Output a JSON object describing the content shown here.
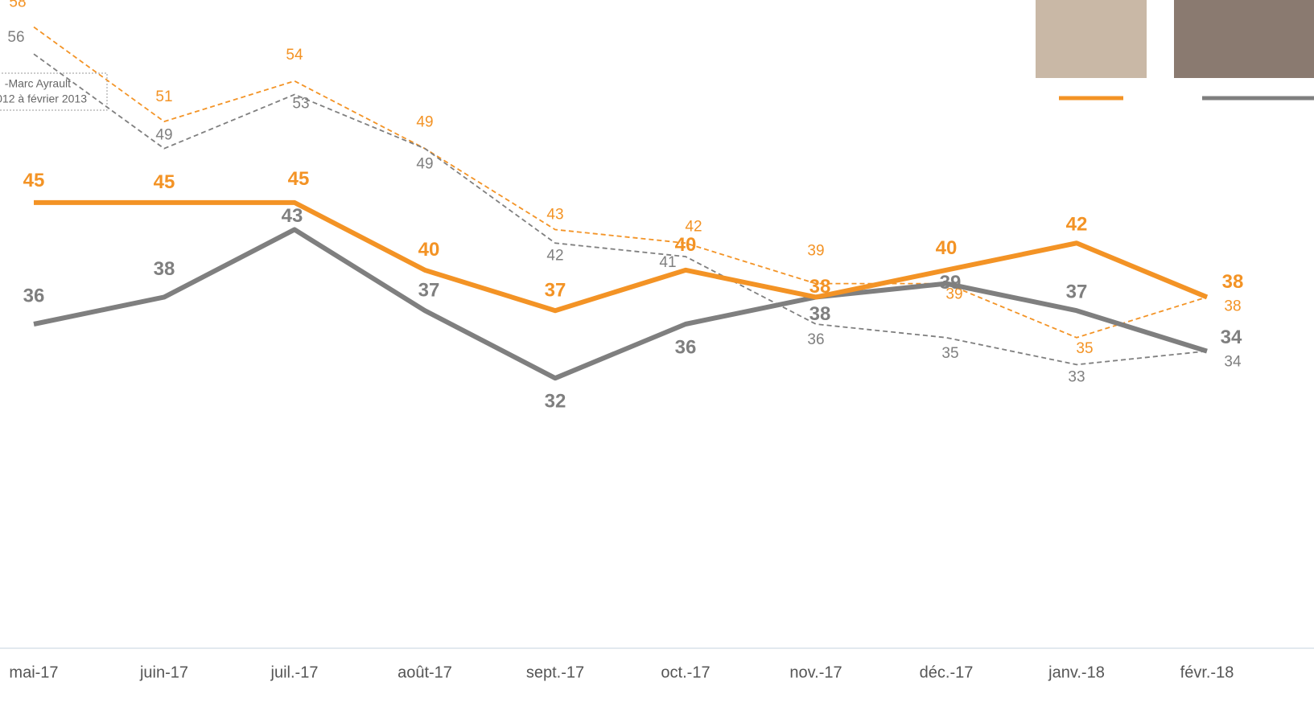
{
  "chart_data": {
    "type": "line",
    "categories": [
      "mai-17",
      "juin-17",
      "juil.-17",
      "août-17",
      "sept.-17",
      "oct.-17",
      "nov.-17",
      "déc.-17",
      "janv.-18",
      "févr.-18"
    ],
    "series": [
      {
        "color": "#f39325",
        "style": "solid",
        "values": [
          45,
          45,
          45,
          40,
          37,
          40,
          38,
          40,
          42,
          38
        ]
      },
      {
        "color": "#7f7f7f",
        "style": "solid",
        "values": [
          36,
          38,
          43,
          37,
          32,
          36,
          38,
          39,
          37,
          34
        ]
      },
      {
        "color": "#f39325",
        "style": "dashed",
        "values": [
          58,
          51,
          54,
          49,
          43,
          42,
          39,
          39,
          35,
          38
        ]
      },
      {
        "color": "#7f7f7f",
        "style": "dashed",
        "values": [
          56,
          49,
          53,
          49,
          42,
          41,
          36,
          35,
          33,
          34
        ]
      }
    ],
    "annotations": [
      "-Marc Ayrault",
      "012 à février 2013"
    ],
    "ylim": [
      12,
      60
    ]
  }
}
